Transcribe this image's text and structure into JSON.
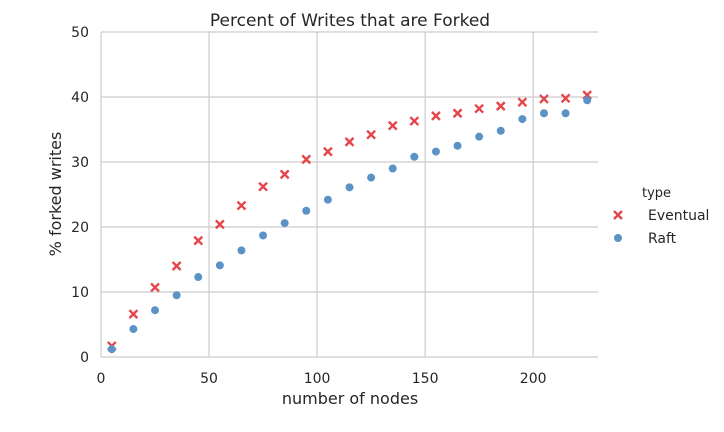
{
  "chart_data": {
    "type": "scatter",
    "title": "Percent of Writes that are Forked",
    "xlabel": "number of nodes",
    "ylabel": "% forked writes",
    "xlim": [
      0,
      230
    ],
    "ylim": [
      0,
      50
    ],
    "xticks": [
      "0",
      "50",
      "100",
      "150",
      "200"
    ],
    "yticks": [
      "0",
      "10",
      "20",
      "30",
      "40",
      "50"
    ],
    "grid": true,
    "legend": {
      "title": "type",
      "placement": "right"
    },
    "series": [
      {
        "name": "Eventual",
        "marker": "x",
        "color": "#e5464a",
        "x": [
          5,
          15,
          25,
          35,
          45,
          55,
          65,
          75,
          85,
          95,
          105,
          115,
          125,
          135,
          145,
          155,
          165,
          175,
          185,
          195,
          205,
          215,
          225
        ],
        "y": [
          1.7,
          6.6,
          10.7,
          14.0,
          17.9,
          20.4,
          23.3,
          26.2,
          28.1,
          30.4,
          31.6,
          33.1,
          34.2,
          35.6,
          36.3,
          37.1,
          37.5,
          38.2,
          38.6,
          39.2,
          39.7,
          39.8,
          40.3
        ]
      },
      {
        "name": "Raft",
        "marker": "o",
        "color": "#5b93c7",
        "x": [
          5,
          15,
          25,
          35,
          45,
          55,
          65,
          75,
          85,
          95,
          105,
          115,
          125,
          135,
          145,
          155,
          165,
          175,
          185,
          195,
          205,
          215,
          225
        ],
        "y": [
          1.2,
          4.3,
          7.2,
          9.5,
          12.3,
          14.1,
          16.4,
          18.7,
          20.6,
          22.5,
          24.2,
          26.1,
          27.6,
          29.0,
          30.8,
          31.6,
          32.5,
          33.9,
          34.8,
          36.6,
          37.5,
          37.5,
          39.5
        ]
      }
    ]
  }
}
